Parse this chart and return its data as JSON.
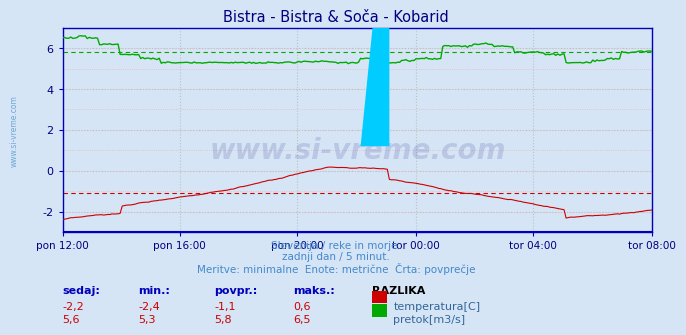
{
  "title": "Bistra - Bistra & Soča - Kobarid",
  "title_color": "#000080",
  "bg_color": "#d5e5f5",
  "plot_bg_color": "#d5e5f5",
  "tick_color": "#000080",
  "grid_color_minor": "#e8b0b0",
  "grid_color_major": "#c8c8c8",
  "watermark_text": "www.si-vreme.com",
  "watermark_color": "#000080",
  "subtitle1": "Slovenija / reke in morje.",
  "subtitle2": "zadnji dan / 5 minut.",
  "subtitle3": "Meritve: minimalne  Enote: metrične  Črta: povprečje",
  "subtitle_color": "#4488cc",
  "ylabel_min": -3.0,
  "ylabel_max": 7.0,
  "yticks": [
    -2,
    0,
    2,
    4,
    6
  ],
  "x_labels": [
    "pon 12:00",
    "pon 16:00",
    "pon 20:00",
    "tor 00:00",
    "tor 04:00",
    "tor 08:00"
  ],
  "temp_avg": -1.1,
  "flow_avg": 5.8,
  "temp_color": "#cc0000",
  "flow_color": "#00aa00",
  "border_color": "#0000bb",
  "header_color": "#0000bb",
  "value_color": "#cc0000",
  "legend_color": "#336699",
  "stats_labels": [
    "sedaj:",
    "min.:",
    "povpr.:",
    "maks.:"
  ],
  "stats_row1": [
    "-2,2",
    "-2,4",
    "-1,1",
    "0,6"
  ],
  "stats_row2": [
    "5,6",
    "5,3",
    "5,8",
    "6,5"
  ],
  "razlika_label": "RAZLIKA",
  "temp_label": "temperatura[C]",
  "flow_label": "pretok[m3/s]",
  "side_watermark": "www.si-vreme.com"
}
